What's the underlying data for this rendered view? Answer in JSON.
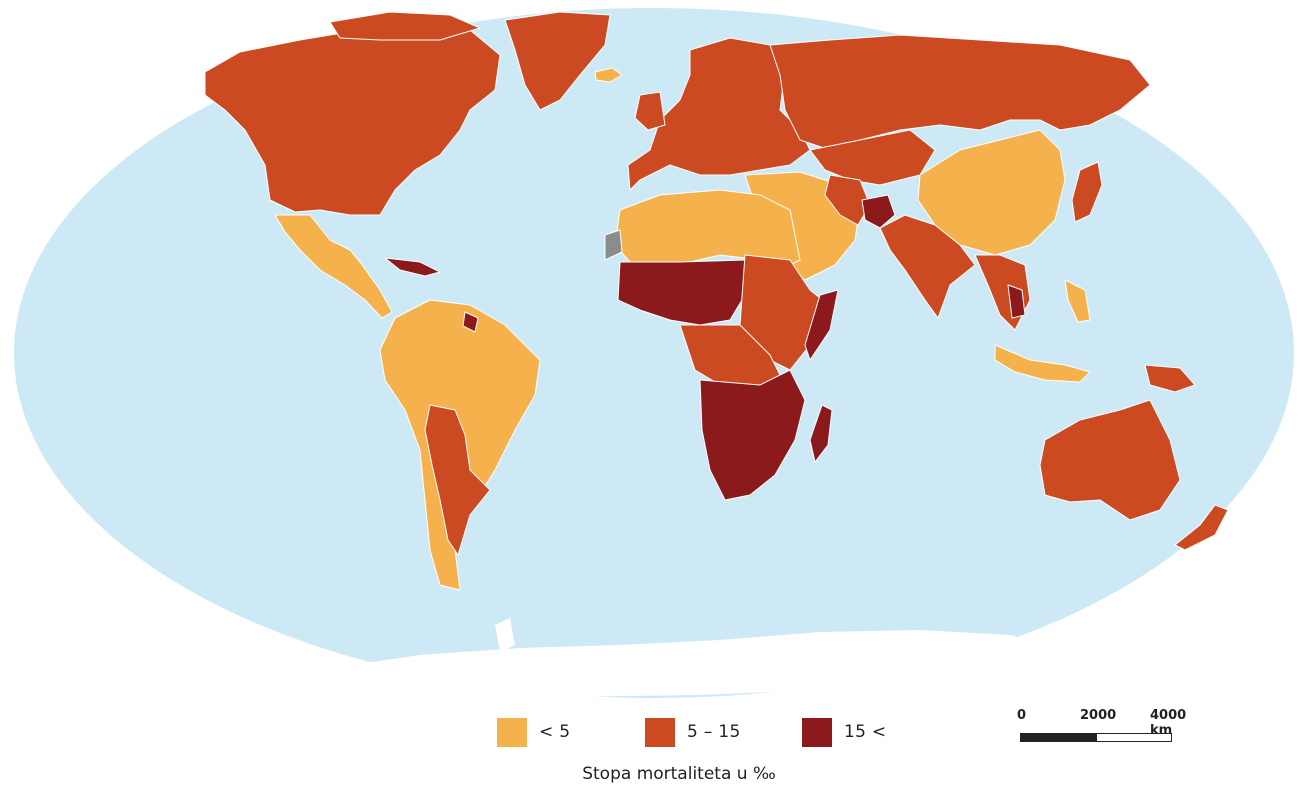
{
  "colors": {
    "ocean": "#cde9f6",
    "low": "#f5b14c",
    "mid": "#cc4a22",
    "high": "#8c1a1c",
    "nodata": "#8c8c8c",
    "antarctica": "#ffffff",
    "border": "#ffffff"
  },
  "legend": {
    "title": "Stopa mortaliteta u ‰",
    "items": [
      {
        "label": "< 5",
        "color": "#f5b14c"
      },
      {
        "label": "5 – 15",
        "color": "#cc4a22"
      },
      {
        "label": "15 <",
        "color": "#8c1a1c"
      }
    ]
  },
  "scale": {
    "ticks": [
      "0",
      "2000",
      "4000 km"
    ]
  }
}
